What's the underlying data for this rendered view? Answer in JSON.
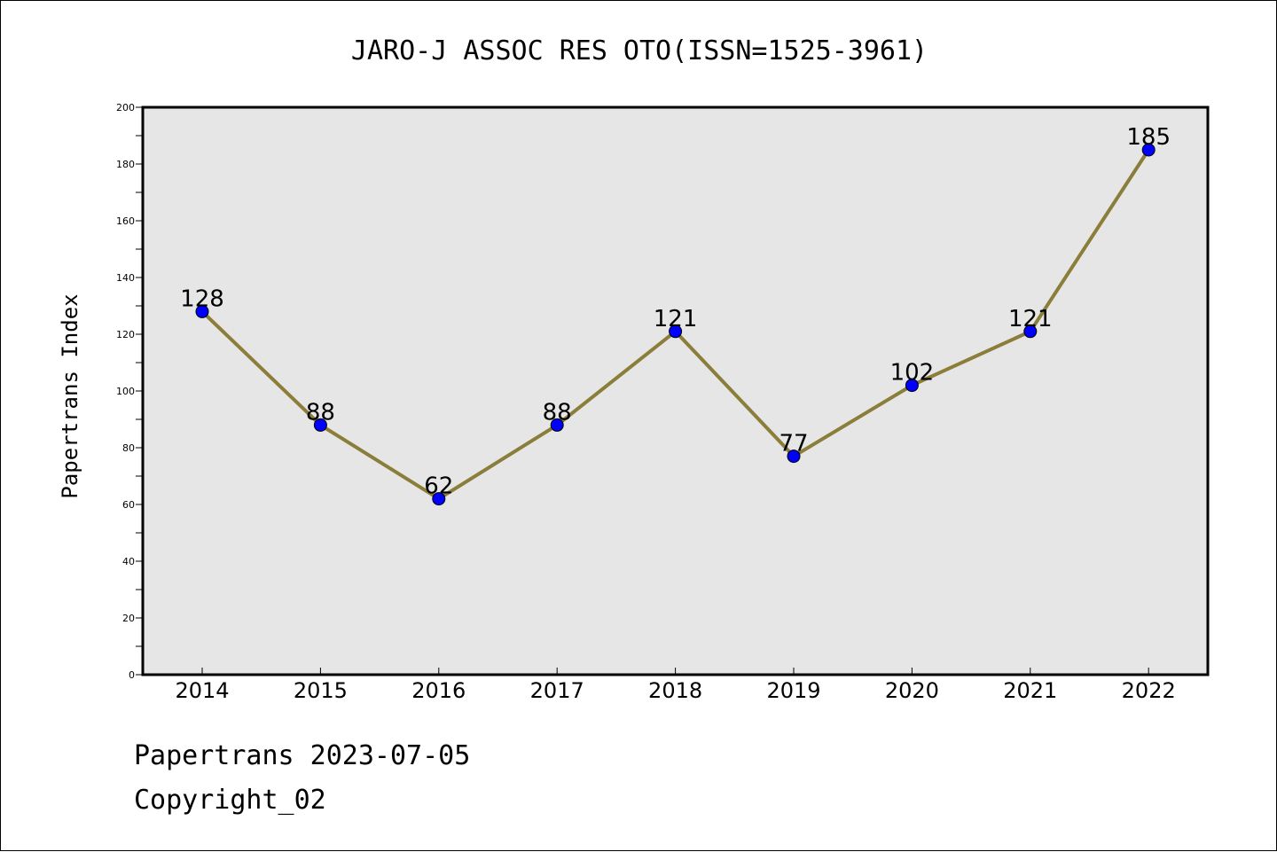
{
  "chart_data": {
    "type": "line",
    "title": "JARO-J ASSOC RES OTO(ISSN=1525-3961)",
    "xlabel": "",
    "ylabel": "Papertrans Index",
    "categories": [
      "2014",
      "2015",
      "2016",
      "2017",
      "2018",
      "2019",
      "2020",
      "2021",
      "2022"
    ],
    "series": [
      {
        "values": [
          128,
          88,
          62,
          88,
          121,
          77,
          102,
          121,
          185
        ]
      }
    ],
    "data_labels": [
      "128",
      "88",
      "62",
      "88",
      "121",
      "77",
      "102",
      "121",
      "185"
    ],
    "ylim": [
      0,
      200
    ],
    "yticks": [
      0,
      20,
      40,
      60,
      80,
      100,
      120,
      140,
      160,
      180,
      200
    ],
    "ytick_labels": [
      "0",
      "20",
      "40",
      "60",
      "80",
      "100",
      "120",
      "140",
      "160",
      "180",
      "200"
    ],
    "grid": false,
    "legend": "none",
    "colors": {
      "line": "#8b7d3a",
      "marker": "#0000ff",
      "plot_background": "#e6e6e6"
    }
  },
  "footer": {
    "date_text": "Papertrans 2023-07-05",
    "copyright_text": "Copyright_02"
  }
}
